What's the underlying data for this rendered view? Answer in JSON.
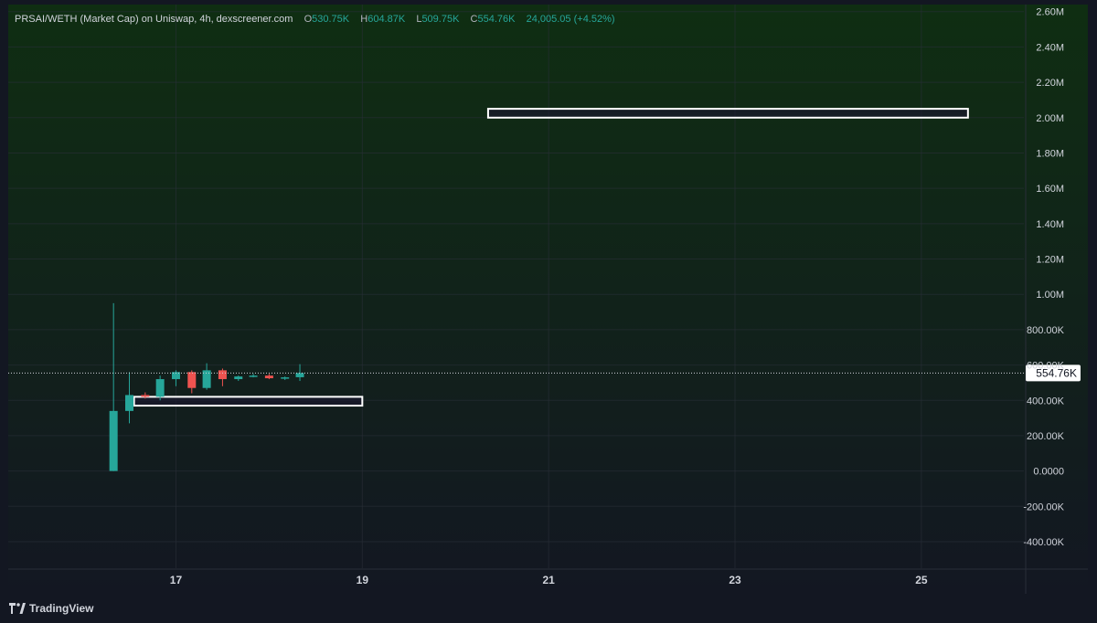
{
  "legend": {
    "title": "PRSAI/WETH (Market Cap) on Uniswap, 4h, dexscreener.com",
    "o_label": "O",
    "o_value": "530.75K",
    "h_label": "H",
    "h_value": "604.87K",
    "l_label": "L",
    "l_value": "509.75K",
    "c_label": "C",
    "c_value": "554.76K",
    "change": "24,005.05 (+4.52%)"
  },
  "branding": {
    "name": "TradingView"
  },
  "colors": {
    "background": "#131722",
    "gradient_top": "#0f2e12",
    "up": "#26a69a",
    "down": "#ef5350",
    "grid": "#2a2e39",
    "axis_text": "#d1d4dc",
    "box_stroke": "#ffffff"
  },
  "chart_data": {
    "type": "candlestick",
    "y_axis_ticks": [
      "2.60M",
      "2.40M",
      "2.20M",
      "2.00M",
      "1.80M",
      "1.60M",
      "1.40M",
      "1.20M",
      "1.00M",
      "800.00K",
      "600.00K",
      "400.00K",
      "200.00K",
      "0.0000",
      "-200.00K",
      "-400.00K"
    ],
    "y_tick_values": [
      2600000,
      2400000,
      2200000,
      2000000,
      1800000,
      1600000,
      1400000,
      1200000,
      1000000,
      800000,
      600000,
      400000,
      200000,
      0,
      -200000,
      -400000
    ],
    "x_axis_ticks": [
      "17",
      "19",
      "21",
      "23",
      "25"
    ],
    "x_tick_values": [
      17,
      19,
      21,
      23,
      25
    ],
    "ylim": [
      -550000,
      2640000
    ],
    "xlim": [
      15.2,
      26.1
    ],
    "last_price": 554760,
    "last_price_label": "554.76K",
    "candles": [
      {
        "t": 16.33,
        "o": 0,
        "h": 340000,
        "l": 0,
        "c": 340000
      },
      {
        "t": 16.5,
        "o": 340000,
        "h": 560000,
        "l": 270000,
        "c": 430000
      },
      {
        "t": 16.67,
        "o": 430000,
        "h": 445000,
        "l": 410000,
        "c": 420000
      },
      {
        "t": 16.83,
        "o": 420000,
        "h": 540000,
        "l": 400000,
        "c": 520000
      },
      {
        "t": 17.0,
        "o": 520000,
        "h": 570000,
        "l": 480000,
        "c": 560000
      },
      {
        "t": 17.17,
        "o": 560000,
        "h": 570000,
        "l": 440000,
        "c": 470000
      },
      {
        "t": 17.33,
        "o": 470000,
        "h": 610000,
        "l": 460000,
        "c": 570000
      },
      {
        "t": 17.5,
        "o": 570000,
        "h": 580000,
        "l": 480000,
        "c": 520000
      },
      {
        "t": 17.67,
        "o": 520000,
        "h": 540000,
        "l": 510000,
        "c": 535000
      },
      {
        "t": 17.83,
        "o": 535000,
        "h": 550000,
        "l": 530000,
        "c": 540000
      },
      {
        "t": 18.0,
        "o": 540000,
        "h": 550000,
        "l": 520000,
        "c": 525000
      },
      {
        "t": 18.17,
        "o": 525000,
        "h": 535000,
        "l": 515000,
        "c": 530000
      },
      {
        "t": 18.33,
        "o": 530750,
        "h": 604870,
        "l": 509750,
        "c": 554760
      }
    ],
    "spike_wick": {
      "t": 16.33,
      "h": 950000
    },
    "annotations": [
      {
        "type": "rect",
        "x0": 20.35,
        "x1": 25.5,
        "y0": 2000000,
        "y1": 2050000
      },
      {
        "type": "rect",
        "x0": 16.55,
        "x1": 19.0,
        "y0": 370000,
        "y1": 420000
      }
    ]
  }
}
